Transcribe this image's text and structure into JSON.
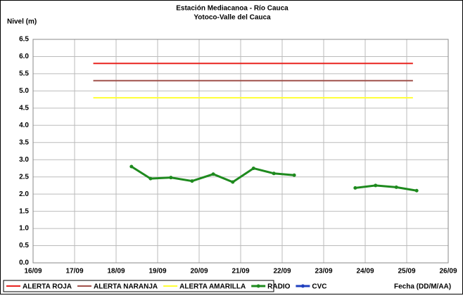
{
  "chart_data": {
    "type": "line",
    "title": "Estación Mediacanoa - Río Cauca",
    "subtitle": "Yotoco-Valle del Cauca",
    "y_label": "Nivel (m)",
    "x_label": "Fecha (DD/M/AA)",
    "xlim": [
      16,
      26
    ],
    "xticks": [
      {
        "value": 16,
        "label": "16/09"
      },
      {
        "value": 17,
        "label": "17/09"
      },
      {
        "value": 18,
        "label": "18/09"
      },
      {
        "value": 19,
        "label": "19/09"
      },
      {
        "value": 20,
        "label": "20/09"
      },
      {
        "value": 21,
        "label": "21/09"
      },
      {
        "value": 22,
        "label": "22/09"
      },
      {
        "value": 23,
        "label": "23/09"
      },
      {
        "value": 24,
        "label": "24/09"
      },
      {
        "value": 25,
        "label": "25/09"
      },
      {
        "value": 26,
        "label": "26/09"
      }
    ],
    "ylim": [
      0,
      6.5
    ],
    "yticks": [
      {
        "value": 0,
        "label": "0.0"
      },
      {
        "value": 0.5,
        "label": "0.5"
      },
      {
        "value": 1,
        "label": "1.0"
      },
      {
        "value": 1.5,
        "label": "1.5"
      },
      {
        "value": 2,
        "label": "2.0"
      },
      {
        "value": 2.5,
        "label": "2.5"
      },
      {
        "value": 3,
        "label": "3.0"
      },
      {
        "value": 3.5,
        "label": "3.5"
      },
      {
        "value": 4,
        "label": "4.0"
      },
      {
        "value": 4.5,
        "label": "4.5"
      },
      {
        "value": 5,
        "label": "5.0"
      },
      {
        "value": 5.5,
        "label": "5.5"
      },
      {
        "value": 6,
        "label": "6.0"
      },
      {
        "value": 6.5,
        "label": "6.5"
      }
    ],
    "grid": true,
    "series": [
      {
        "name": "ALERTA ROJA",
        "color": "#e8231f",
        "markers": false,
        "x": [
          17.45,
          25.15
        ],
        "values": [
          5.8,
          5.8
        ]
      },
      {
        "name": "ALERTA NARANJA",
        "color": "#a0504a",
        "markers": false,
        "x": [
          17.45,
          25.15
        ],
        "values": [
          5.3,
          5.3
        ]
      },
      {
        "name": "ALERTA AMARILLA",
        "color": "#ffff33",
        "markers": false,
        "x": [
          17.45,
          25.15
        ],
        "values": [
          4.8,
          4.8
        ]
      },
      {
        "name": "RADIO",
        "color": "#1e8a1e",
        "markers": true,
        "x": [
          18.37,
          18.83,
          19.32,
          19.83,
          20.34,
          20.81,
          21.31,
          21.8,
          22.29,
          23.0,
          23.76,
          24.25,
          24.75,
          25.24
        ],
        "values": [
          2.8,
          2.45,
          2.48,
          2.38,
          2.58,
          2.35,
          2.75,
          2.6,
          2.55,
          null,
          2.18,
          2.25,
          2.2,
          2.1
        ]
      },
      {
        "name": "CVC",
        "color": "#1f3fbf",
        "markers": true,
        "x": [],
        "values": []
      }
    ]
  }
}
